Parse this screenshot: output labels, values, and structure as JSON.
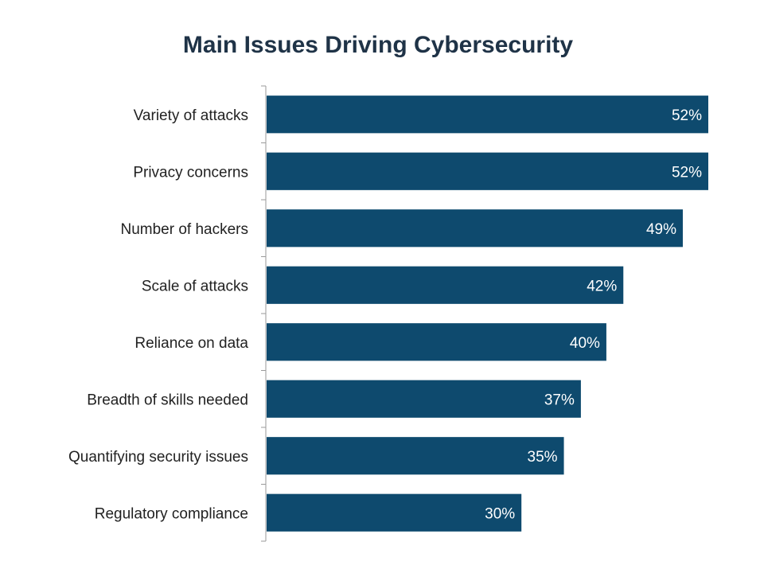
{
  "chart_data": {
    "type": "bar",
    "orientation": "horizontal",
    "title": "Main Issues Driving Cybersecurity",
    "categories": [
      "Variety of attacks",
      "Privacy concerns",
      "Number of hackers",
      "Scale of attacks",
      "Reliance on data",
      "Breadth of skills needed",
      "Quantifying security issues",
      "Regulatory compliance"
    ],
    "values": [
      52,
      52,
      49,
      42,
      40,
      37,
      35,
      30
    ],
    "value_labels": [
      "52%",
      "52%",
      "49%",
      "42%",
      "40%",
      "37%",
      "35%",
      "30%"
    ],
    "unit": "%",
    "xlim": [
      0,
      52
    ],
    "grid": false,
    "legend": "none",
    "bar_color": "#0e4a6e"
  }
}
